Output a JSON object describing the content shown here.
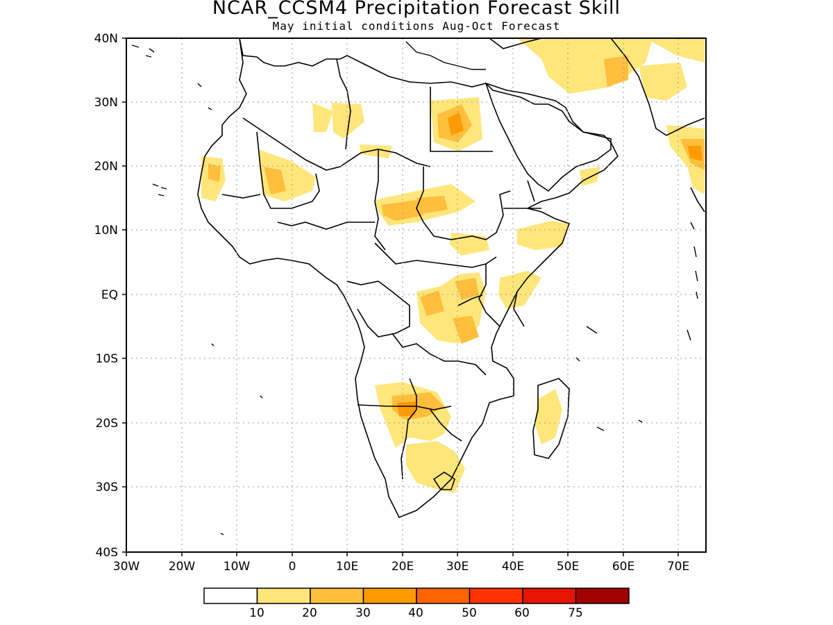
{
  "title": "NCAR_CCSM4 Precipitation Forecast Skill",
  "subtitle": "May initial conditions  Aug-Oct Forecast",
  "map": {
    "lon_range": [
      -30,
      75
    ],
    "lat_range": [
      -40,
      40
    ],
    "lat_tick_labels": [
      "40N",
      "30N",
      "20N",
      "10N",
      "EQ",
      "10S",
      "20S",
      "30S",
      "40S"
    ],
    "lon_tick_labels": [
      "30W",
      "20W",
      "10W",
      "0",
      "10E",
      "20E",
      "30E",
      "40E",
      "50E",
      "60E",
      "70E"
    ],
    "gridlines": "dotted",
    "coastline_color": "#000000"
  },
  "colorbar": {
    "labels": [
      "10",
      "20",
      "30",
      "40",
      "50",
      "60",
      "75"
    ],
    "colors": [
      "#ffffff",
      "#ffe67a",
      "#ffbe3c",
      "#ff9a00",
      "#ff6400",
      "#ff3200",
      "#e61400",
      "#a00000"
    ]
  }
}
